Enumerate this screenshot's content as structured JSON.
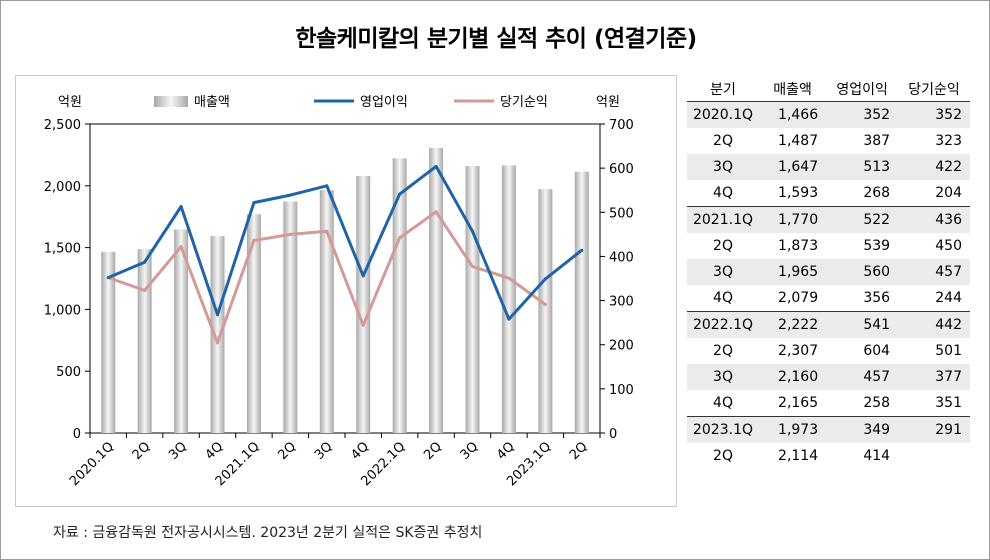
{
  "title": "한솔케미칼의 분기별 실적 추이 (연결기준)",
  "source": "자료 : 금융감독원 전자공시시스템. 2023년 2분기 실적은 SK증권 추정치",
  "colors": {
    "bar": "#d4d4d4",
    "op": "#1f63a8",
    "net": "#d49a97"
  },
  "chart_data": {
    "type": "bar",
    "categories": [
      "2020.1Q",
      "2Q",
      "3Q",
      "4Q",
      "2021.1Q",
      "2Q",
      "3Q",
      "4Q",
      "2022.1Q",
      "2Q",
      "3Q",
      "4Q",
      "2023.1Q",
      "2Q"
    ],
    "series": [
      {
        "name": "매출액",
        "type": "bar",
        "axis": "left",
        "values": [
          1466,
          1487,
          1647,
          1593,
          1770,
          1873,
          1965,
          2079,
          2222,
          2307,
          2160,
          2165,
          1973,
          2114
        ]
      },
      {
        "name": "영업이익",
        "type": "line",
        "axis": "right",
        "values": [
          352,
          387,
          513,
          268,
          522,
          539,
          560,
          356,
          541,
          604,
          457,
          258,
          349,
          414
        ]
      },
      {
        "name": "당기순익",
        "type": "line",
        "axis": "right",
        "values": [
          352,
          323,
          422,
          204,
          436,
          450,
          457,
          244,
          442,
          501,
          377,
          351,
          291,
          null
        ]
      }
    ],
    "ylabel_left": "억원",
    "ylabel_right": "억원",
    "ylim_left": [
      0,
      2500
    ],
    "yticks_left": [
      "0",
      "500",
      "1,000",
      "1,500",
      "2,000",
      "2,500"
    ],
    "ylim_right": [
      0,
      700
    ],
    "yticks_right": [
      "0",
      "100",
      "200",
      "300",
      "400",
      "500",
      "600",
      "700"
    ],
    "legend": "top",
    "grid": false
  },
  "table": {
    "headers": [
      "분기",
      "매출액",
      "영업이익",
      "당기순익"
    ],
    "rows": [
      [
        "2020.1Q",
        "1,466",
        "352",
        "352"
      ],
      [
        "2Q",
        "1,487",
        "387",
        "323"
      ],
      [
        "3Q",
        "1,647",
        "513",
        "422"
      ],
      [
        "4Q",
        "1,593",
        "268",
        "204"
      ],
      [
        "2021.1Q",
        "1,770",
        "522",
        "436"
      ],
      [
        "2Q",
        "1,873",
        "539",
        "450"
      ],
      [
        "3Q",
        "1,965",
        "560",
        "457"
      ],
      [
        "4Q",
        "2,079",
        "356",
        "244"
      ],
      [
        "2022.1Q",
        "2,222",
        "541",
        "442"
      ],
      [
        "2Q",
        "2,307",
        "604",
        "501"
      ],
      [
        "3Q",
        "2,160",
        "457",
        "377"
      ],
      [
        "4Q",
        "2,165",
        "258",
        "351"
      ],
      [
        "2023.1Q",
        "1,973",
        "349",
        "291"
      ],
      [
        "2Q",
        "2,114",
        "414",
        ""
      ]
    ]
  }
}
